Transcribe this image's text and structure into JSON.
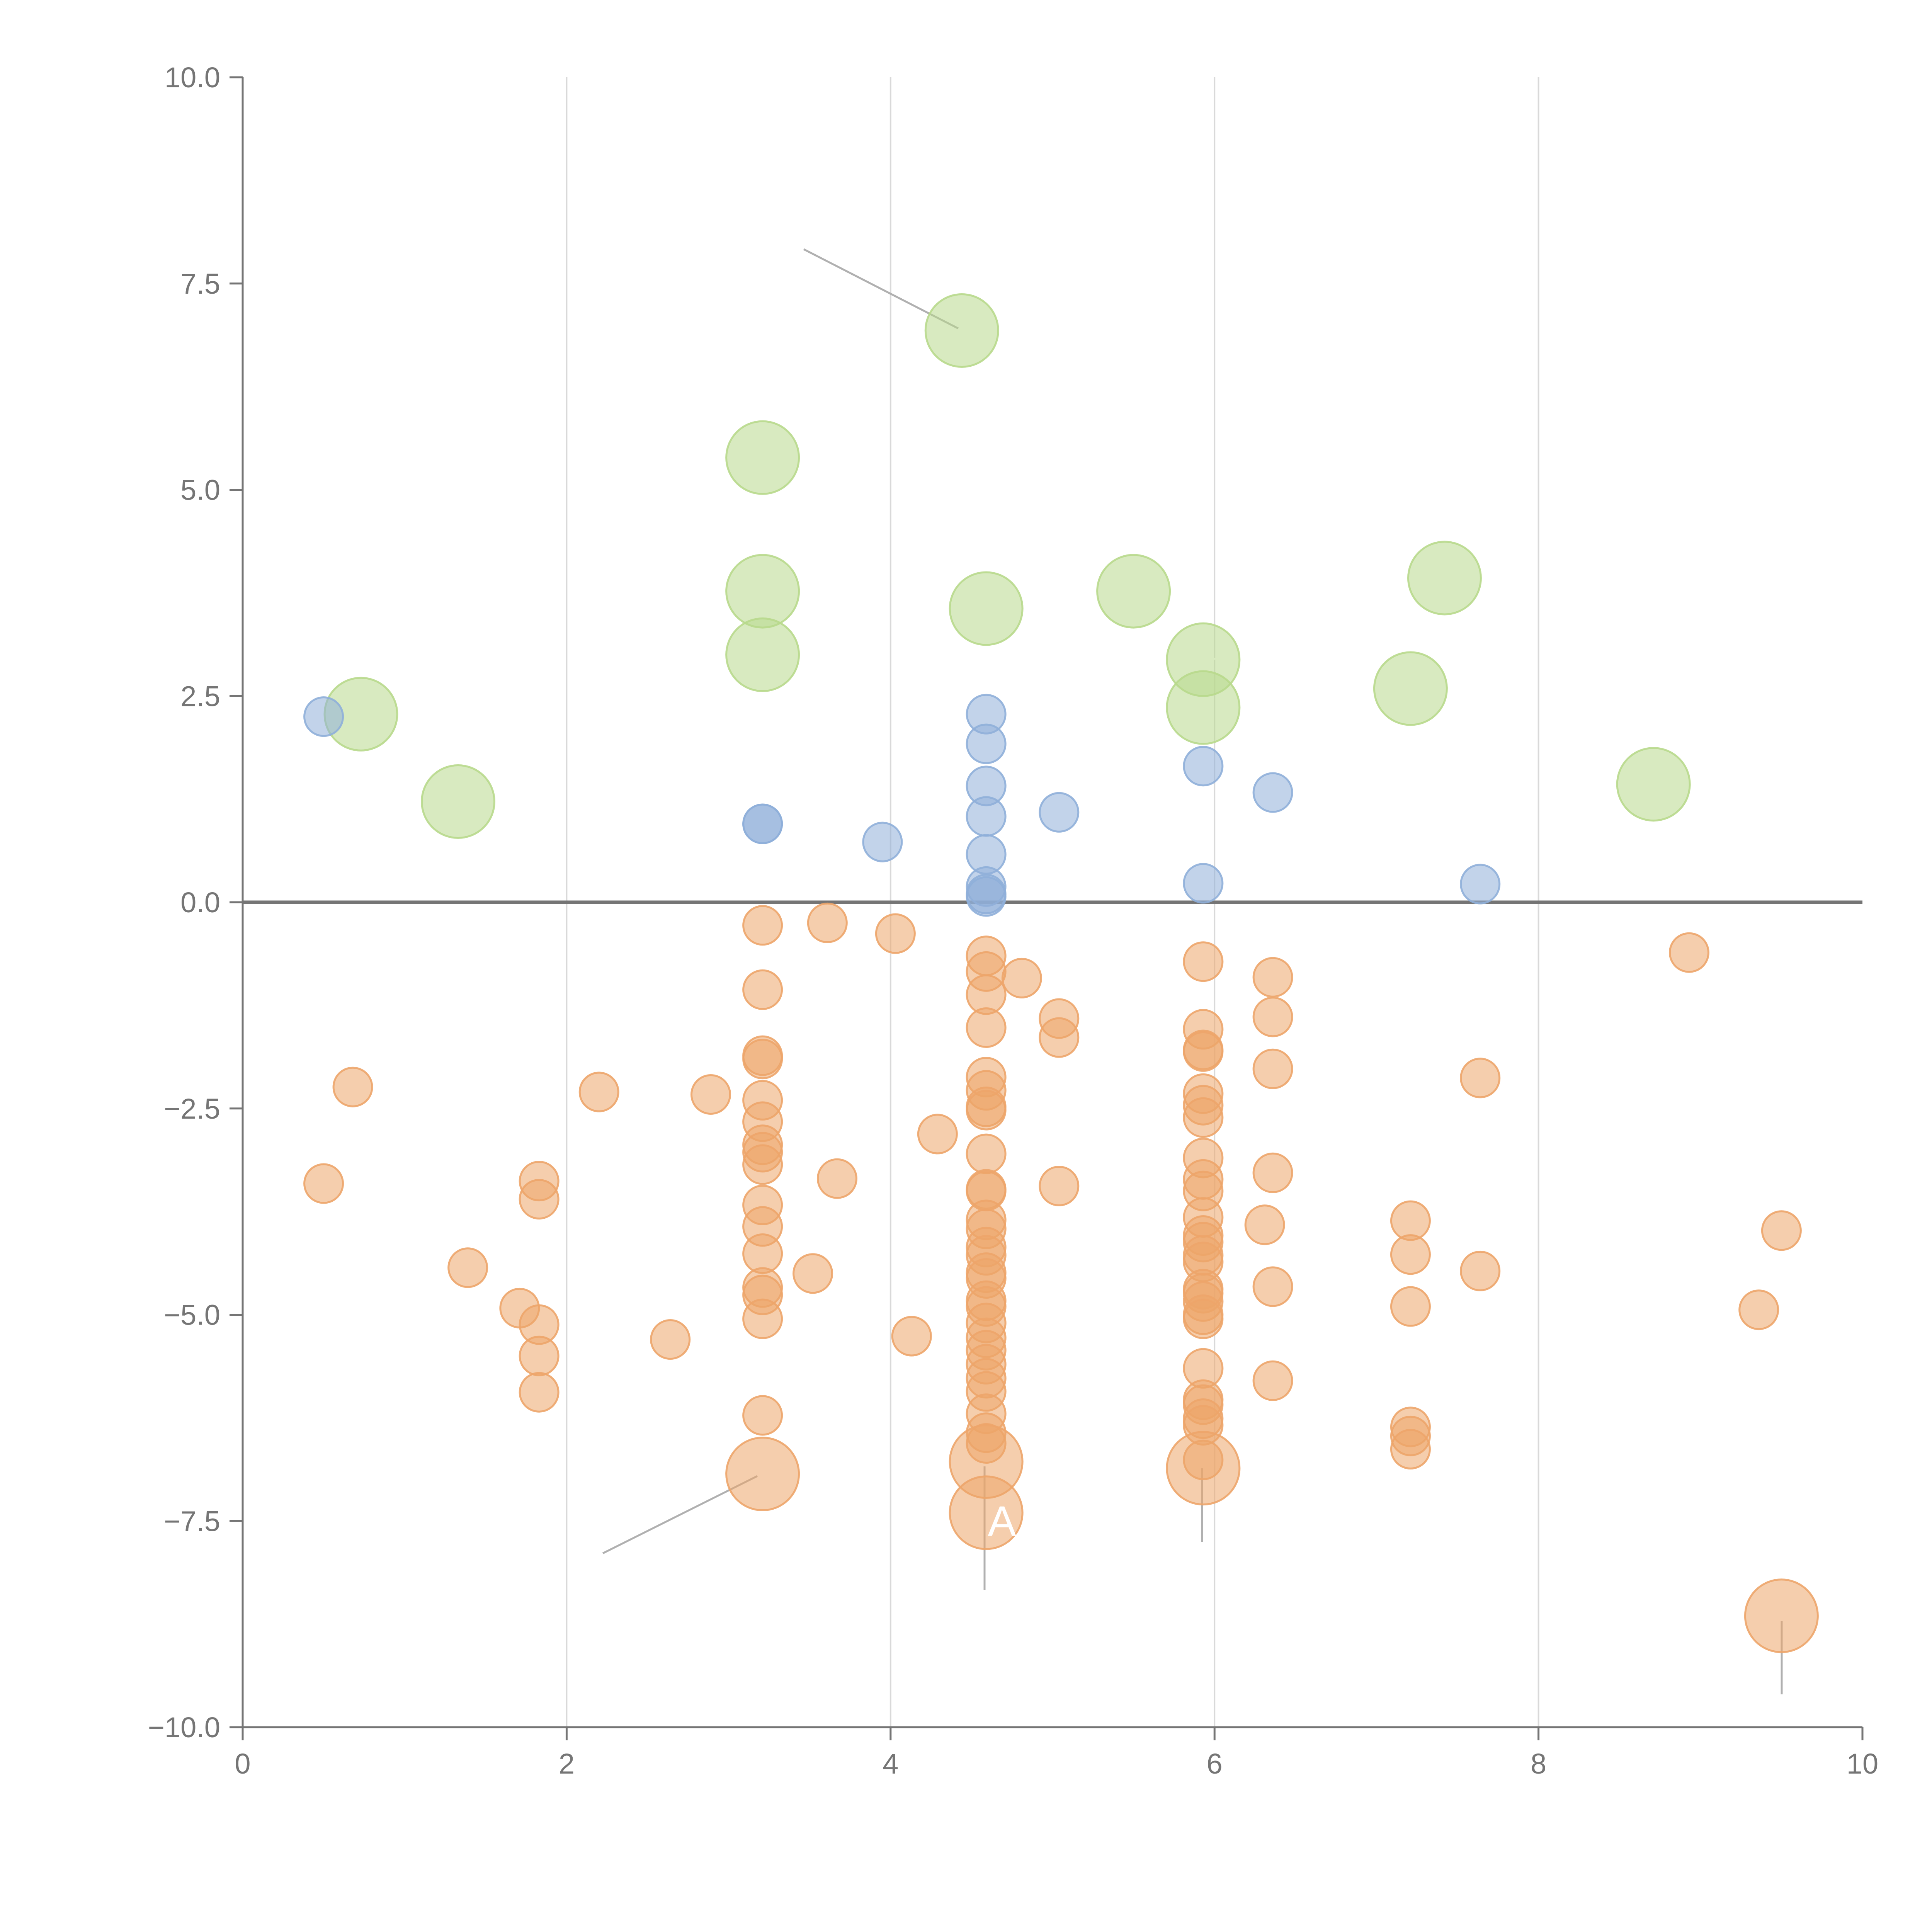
{
  "chart_data": {
    "type": "scatter",
    "title": "",
    "xlabel": "",
    "ylabel": "",
    "xlim": [
      0,
      10
    ],
    "ylim": [
      -10,
      10
    ],
    "x_ticks": [
      0,
      2,
      4,
      6,
      8,
      10
    ],
    "x_tick_labels": [
      "0",
      "2",
      "4",
      "6",
      "8",
      "10"
    ],
    "y_ticks": [
      10,
      7.5,
      5,
      2.5,
      0,
      -2.5,
      -5,
      -7.5,
      -10
    ],
    "y_tick_labels": [
      "10.0",
      "7.5",
      "5.0",
      "2.5",
      "0.0",
      "−2.5",
      "−5.0",
      "−7.5",
      "−10.0"
    ],
    "grid": "vertical",
    "zero_line": true,
    "legend": "none",
    "colors": {
      "green": "#b8d98c",
      "blue": "#8fafd9",
      "orange": "#eda56a",
      "axis": "#757575",
      "grid": "#d9d9d9",
      "leader": "#b0b0b0"
    },
    "series": [
      {
        "color_key": "green",
        "size": "large",
        "points": [
          {
            "x": 4.44,
            "y": 6.93
          },
          {
            "x": 3.21,
            "y": 5.39
          },
          {
            "x": 3.21,
            "y": 3.77
          },
          {
            "x": 3.21,
            "y": 3.0
          },
          {
            "x": 4.59,
            "y": 3.56
          },
          {
            "x": 5.5,
            "y": 3.77
          },
          {
            "x": 5.93,
            "y": 2.94
          },
          {
            "x": 5.93,
            "y": 2.36
          },
          {
            "x": 7.42,
            "y": 3.93
          },
          {
            "x": 7.21,
            "y": 2.59
          },
          {
            "x": 8.71,
            "y": 1.43
          },
          {
            "x": 0.73,
            "y": 2.28
          },
          {
            "x": 1.33,
            "y": 1.22
          }
        ]
      },
      {
        "color_key": "blue",
        "size": "small",
        "points": [
          {
            "x": 0.5,
            "y": 2.25
          },
          {
            "x": 3.21,
            "y": 0.95
          },
          {
            "x": 3.21,
            "y": 0.95
          },
          {
            "x": 3.95,
            "y": 0.73
          },
          {
            "x": 4.59,
            "y": 2.28
          },
          {
            "x": 4.59,
            "y": 1.92
          },
          {
            "x": 4.59,
            "y": 1.41
          },
          {
            "x": 4.59,
            "y": 1.04
          },
          {
            "x": 4.59,
            "y": 0.58
          },
          {
            "x": 4.59,
            "y": 0.19
          },
          {
            "x": 4.59,
            "y": 0.1
          },
          {
            "x": 4.59,
            "y": 0.07
          },
          {
            "x": 5.04,
            "y": 1.09
          },
          {
            "x": 5.93,
            "y": 1.65
          },
          {
            "x": 5.93,
            "y": 0.23
          },
          {
            "x": 6.36,
            "y": 1.33
          },
          {
            "x": 7.64,
            "y": 0.22
          }
        ]
      },
      {
        "color_key": "orange",
        "size": "small",
        "points": [
          {
            "x": 0.5,
            "y": -3.41
          },
          {
            "x": 0.68,
            "y": -2.24
          },
          {
            "x": 1.39,
            "y": -4.43
          },
          {
            "x": 1.71,
            "y": -4.92
          },
          {
            "x": 1.83,
            "y": -3.38
          },
          {
            "x": 1.83,
            "y": -3.6
          },
          {
            "x": 1.83,
            "y": -5.12
          },
          {
            "x": 1.83,
            "y": -5.5
          },
          {
            "x": 1.83,
            "y": -5.94
          },
          {
            "x": 2.2,
            "y": -2.3
          },
          {
            "x": 2.64,
            "y": -5.3
          },
          {
            "x": 2.89,
            "y": -2.33
          },
          {
            "x": 3.21,
            "y": -0.28
          },
          {
            "x": 3.21,
            "y": -1.06
          },
          {
            "x": 3.21,
            "y": -1.86
          },
          {
            "x": 3.21,
            "y": -1.9
          },
          {
            "x": 3.21,
            "y": -2.4
          },
          {
            "x": 3.21,
            "y": -2.66
          },
          {
            "x": 3.21,
            "y": -2.94
          },
          {
            "x": 3.21,
            "y": -3.03
          },
          {
            "x": 3.21,
            "y": -3.18
          },
          {
            "x": 3.21,
            "y": -3.67
          },
          {
            "x": 3.21,
            "y": -3.93
          },
          {
            "x": 3.21,
            "y": -4.26
          },
          {
            "x": 3.21,
            "y": -4.67
          },
          {
            "x": 3.21,
            "y": -4.76
          },
          {
            "x": 3.21,
            "y": -5.05
          },
          {
            "x": 3.21,
            "y": -6.22
          },
          {
            "x": 3.52,
            "y": -4.5
          },
          {
            "x": 3.61,
            "y": -0.25
          },
          {
            "x": 3.67,
            "y": -3.35
          },
          {
            "x": 4.03,
            "y": -0.38
          },
          {
            "x": 4.13,
            "y": -5.26
          },
          {
            "x": 4.29,
            "y": -2.81
          },
          {
            "x": 4.59,
            "y": -0.65
          },
          {
            "x": 4.59,
            "y": -0.84
          },
          {
            "x": 4.59,
            "y": -1.12
          },
          {
            "x": 4.59,
            "y": -1.52
          },
          {
            "x": 4.59,
            "y": -2.12
          },
          {
            "x": 4.59,
            "y": -2.28
          },
          {
            "x": 4.59,
            "y": -2.48
          },
          {
            "x": 4.59,
            "y": -2.52
          },
          {
            "x": 4.59,
            "y": -3.05
          },
          {
            "x": 4.59,
            "y": -3.48
          },
          {
            "x": 4.59,
            "y": -3.5
          },
          {
            "x": 4.59,
            "y": -3.85
          },
          {
            "x": 4.59,
            "y": -3.96
          },
          {
            "x": 4.59,
            "y": -4.18
          },
          {
            "x": 4.59,
            "y": -4.28
          },
          {
            "x": 4.59,
            "y": -4.49
          },
          {
            "x": 4.59,
            "y": -4.56
          },
          {
            "x": 4.59,
            "y": -4.83
          },
          {
            "x": 4.59,
            "y": -4.9
          },
          {
            "x": 4.59,
            "y": -5.1
          },
          {
            "x": 4.59,
            "y": -5.28
          },
          {
            "x": 4.59,
            "y": -5.43
          },
          {
            "x": 4.59,
            "y": -5.6
          },
          {
            "x": 4.59,
            "y": -5.77
          },
          {
            "x": 4.59,
            "y": -5.93
          },
          {
            "x": 4.59,
            "y": -6.2
          },
          {
            "x": 4.59,
            "y": -6.43
          },
          {
            "x": 4.59,
            "y": -6.56
          },
          {
            "x": 4.81,
            "y": -0.92
          },
          {
            "x": 5.04,
            "y": -1.41
          },
          {
            "x": 5.04,
            "y": -1.64
          },
          {
            "x": 5.04,
            "y": -3.44
          },
          {
            "x": 5.93,
            "y": -0.72
          },
          {
            "x": 5.93,
            "y": -1.54
          },
          {
            "x": 5.93,
            "y": -1.79
          },
          {
            "x": 5.93,
            "y": -1.81
          },
          {
            "x": 5.93,
            "y": -2.32
          },
          {
            "x": 5.93,
            "y": -2.46
          },
          {
            "x": 5.93,
            "y": -2.61
          },
          {
            "x": 5.93,
            "y": -3.1
          },
          {
            "x": 5.93,
            "y": -3.36
          },
          {
            "x": 5.93,
            "y": -3.5
          },
          {
            "x": 5.93,
            "y": -3.82
          },
          {
            "x": 5.93,
            "y": -4.04
          },
          {
            "x": 5.93,
            "y": -4.12
          },
          {
            "x": 5.93,
            "y": -4.28
          },
          {
            "x": 5.93,
            "y": -4.36
          },
          {
            "x": 5.93,
            "y": -4.69
          },
          {
            "x": 5.93,
            "y": -4.74
          },
          {
            "x": 5.93,
            "y": -4.84
          },
          {
            "x": 5.93,
            "y": -5.0
          },
          {
            "x": 5.93,
            "y": -5.05
          },
          {
            "x": 5.93,
            "y": -5.65
          },
          {
            "x": 5.93,
            "y": -6.03
          },
          {
            "x": 5.93,
            "y": -6.09
          },
          {
            "x": 5.93,
            "y": -6.26
          },
          {
            "x": 5.93,
            "y": -6.34
          },
          {
            "x": 5.93,
            "y": -6.76
          },
          {
            "x": 6.31,
            "y": -3.91
          },
          {
            "x": 6.36,
            "y": -0.91
          },
          {
            "x": 6.36,
            "y": -1.39
          },
          {
            "x": 6.36,
            "y": -2.02
          },
          {
            "x": 6.36,
            "y": -3.28
          },
          {
            "x": 6.36,
            "y": -4.66
          },
          {
            "x": 6.36,
            "y": -5.8
          },
          {
            "x": 7.21,
            "y": -3.86
          },
          {
            "x": 7.21,
            "y": -4.27
          },
          {
            "x": 7.21,
            "y": -4.9
          },
          {
            "x": 7.21,
            "y": -6.36
          },
          {
            "x": 7.21,
            "y": -6.47
          },
          {
            "x": 7.21,
            "y": -6.63
          },
          {
            "x": 7.64,
            "y": -2.13
          },
          {
            "x": 7.64,
            "y": -4.47
          },
          {
            "x": 8.93,
            "y": -0.61
          },
          {
            "x": 9.36,
            "y": -4.94
          },
          {
            "x": 9.5,
            "y": -3.98
          }
        ]
      },
      {
        "color_key": "orange",
        "size": "large",
        "points": [
          {
            "x": 3.21,
            "y": -6.93
          },
          {
            "x": 4.59,
            "y": -6.78
          },
          {
            "x": 4.59,
            "y": -7.4
          },
          {
            "x": 5.93,
            "y": -6.86
          },
          {
            "x": 9.5,
            "y": -8.65
          }
        ]
      }
    ],
    "annotations": [
      {
        "text": "A",
        "x": 4.6,
        "y": -7.5
      }
    ]
  }
}
